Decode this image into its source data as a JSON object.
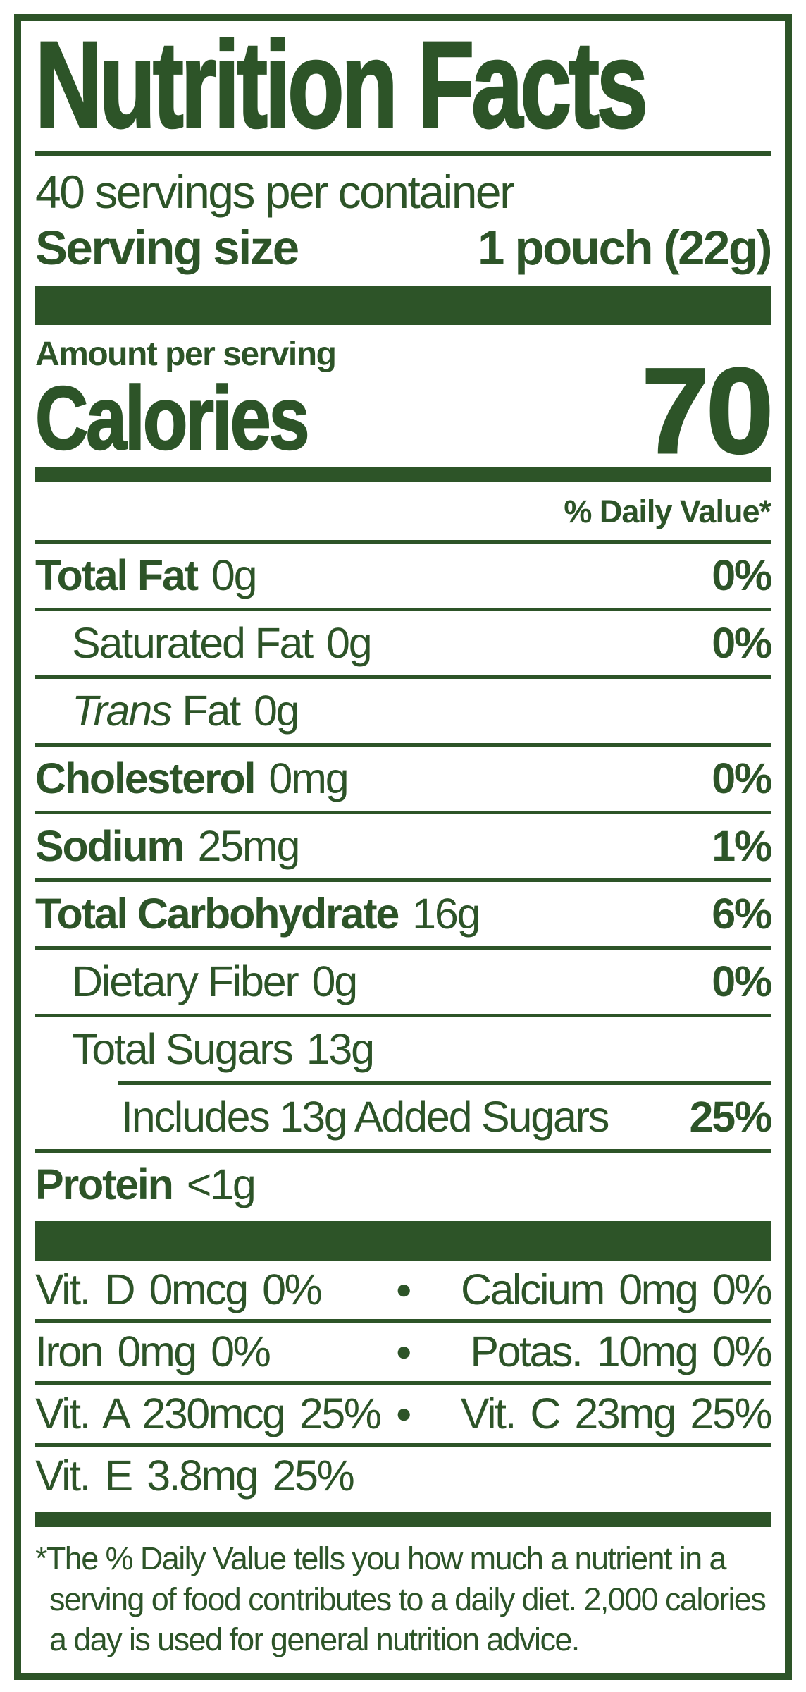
{
  "label": {
    "title": "Nutrition Facts",
    "servings_per_container": "40 servings per container",
    "serving_size": {
      "label": "Serving size",
      "value": "1 pouch (22g)"
    },
    "amount_per_serving": "Amount per serving",
    "calories": {
      "label": "Calories",
      "value": "70"
    },
    "daily_value_header": "% Daily Value*",
    "bullet": "●",
    "nutrients": [
      {
        "name": "Total Fat",
        "amount": "0g",
        "dv": "0%"
      },
      {
        "name": "Saturated Fat",
        "amount": "0g",
        "dv": "0%"
      },
      {
        "name_italic": "Trans",
        "name": "Fat",
        "amount": "0g",
        "dv": ""
      },
      {
        "name": "Cholesterol",
        "amount": "0mg",
        "dv": "0%"
      },
      {
        "name": "Sodium",
        "amount": "25mg",
        "dv": "1%"
      },
      {
        "name": "Total Carbohydrate",
        "amount": "16g",
        "dv": "6%"
      },
      {
        "name": "Dietary Fiber",
        "amount": "0g",
        "dv": "0%"
      },
      {
        "name": "Total Sugars",
        "amount": "13g",
        "dv": ""
      },
      {
        "name": "Includes 13g Added Sugars",
        "amount": "",
        "dv": "25%"
      },
      {
        "name": "Protein",
        "amount": "<1g",
        "dv": ""
      }
    ],
    "micronutrients": [
      {
        "left": "Vit. D 0mcg 0%",
        "right": "Calcium 0mg 0%"
      },
      {
        "left": "Iron 0mg 0%",
        "right": "Potas. 10mg 0%"
      },
      {
        "left": "Vit. A 230mcg 25%",
        "right": "Vit. C 23mg 25%"
      },
      {
        "left": "Vit. E 3.8mg 25%",
        "right": ""
      }
    ],
    "footnote": "*The % Daily Value tells you how much a nutrient in a serving of food contributes to a daily diet. 2,000 calories a day is used for general nutrition advice.",
    "colors": {
      "green": "#2d5428",
      "background": "#ffffff"
    }
  }
}
